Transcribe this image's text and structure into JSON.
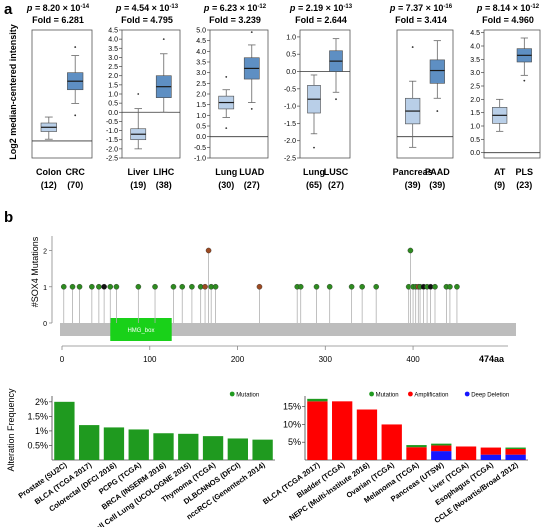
{
  "panel_a": {
    "label": "a",
    "ylabel": "Log2 median-centered intensity",
    "p_prefix": "p = ",
    "fold_prefix": "Fold = ",
    "colors": {
      "normal": "#b9cfe8",
      "tumor": "#5e8fc3",
      "stroke": "#4a4a4a",
      "whisker": "#666666"
    }
  },
  "panel_b": {
    "label": "b",
    "lollipop": {
      "ylabel": "#SOX4 Mutations",
      "domain_label": "HMG_box",
      "end_label": "474aa",
      "colors": {
        "missense": "#2e8b20",
        "truncating": "#111111",
        "other": "#9c4a22",
        "domain": "#19d119",
        "bar": "#bdbdbd"
      }
    },
    "colors": {
      "mutation": "#1f9a1f",
      "amplification": "#ff0000",
      "deep_deletion": "#1515ff"
    }
  },
  "chart_data": [
    {
      "type": "box",
      "id": "colon",
      "p": "8.20 × 10",
      "p_exp": "-14",
      "fold": "6.281",
      "yticks": [],
      "ylim": [
        -1.0,
        6.5
      ],
      "categories": [
        {
          "name": "Colon",
          "n": "(12)",
          "group": "normal",
          "min": 0.1,
          "q1": 0.55,
          "median": 0.8,
          "q3": 1.05,
          "max": 1.4,
          "outliers": []
        },
        {
          "name": "CRC",
          "n": "(70)",
          "group": "tumor",
          "min": 2.2,
          "q1": 3.0,
          "median": 3.5,
          "q3": 4.0,
          "max": 5.0,
          "outliers": [
            1.5,
            5.5
          ]
        }
      ]
    },
    {
      "type": "box",
      "id": "liver",
      "p": "4.54 × 10",
      "p_exp": "-13",
      "fold": "4.795",
      "yticks": [
        "-2.5",
        "-2.0",
        "-1.5",
        "-1.0",
        "-0.5",
        "0.0",
        "0.5",
        "1.0",
        "1.5",
        "2.0",
        "2.5",
        "3.0",
        "3.5",
        "4.0",
        "4.5"
      ],
      "ylim": [
        -2.5,
        4.5
      ],
      "categories": [
        {
          "name": "Liver",
          "n": "(19)",
          "group": "normal",
          "min": -2.0,
          "q1": -1.5,
          "median": -1.2,
          "q3": -0.9,
          "max": 0.2,
          "outliers": [
            1.0
          ]
        },
        {
          "name": "LIHC",
          "n": "(38)",
          "group": "tumor",
          "min": 0.0,
          "q1": 0.8,
          "median": 1.4,
          "q3": 2.0,
          "max": 3.2,
          "outliers": [
            4.0
          ]
        }
      ]
    },
    {
      "type": "box",
      "id": "lung-luad",
      "p": "6.23 × 10",
      "p_exp": "-12",
      "fold": "3.239",
      "yticks": [
        "-1.0",
        "-0.5",
        "0.0",
        "0.5",
        "1.0",
        "1.5",
        "2.0",
        "2.5",
        "3.0",
        "3.5",
        "4.0",
        "4.5",
        "5.0"
      ],
      "ylim": [
        -1.0,
        5.0
      ],
      "categories": [
        {
          "name": "Lung",
          "n": "(30)",
          "group": "normal",
          "min": 0.9,
          "q1": 1.3,
          "median": 1.6,
          "q3": 1.9,
          "max": 2.2,
          "outliers": [
            0.4,
            2.8
          ]
        },
        {
          "name": "LUAD",
          "n": "(27)",
          "group": "tumor",
          "min": 1.6,
          "q1": 2.7,
          "median": 3.2,
          "q3": 3.7,
          "max": 4.3,
          "outliers": [
            1.3,
            4.9
          ]
        }
      ]
    },
    {
      "type": "box",
      "id": "lung-lusc",
      "p": "2.19 × 10",
      "p_exp": "-13",
      "fold": "2.644",
      "yticks": [
        "-2.5",
        "-2.0",
        "-1.5",
        "-1.0",
        "-0.5",
        "0.0",
        "0.5",
        "1.0"
      ],
      "ylim": [
        -2.5,
        1.2
      ],
      "categories": [
        {
          "name": "Lung",
          "n": "(65)",
          "group": "normal",
          "min": -1.8,
          "q1": -1.2,
          "median": -0.8,
          "q3": -0.4,
          "max": -0.1,
          "outliers": [
            -2.2
          ]
        },
        {
          "name": "LUSC",
          "n": "(27)",
          "group": "tumor",
          "min": -0.6,
          "q1": 0.0,
          "median": 0.3,
          "q3": 0.6,
          "max": 0.95,
          "outliers": [
            -0.8
          ]
        }
      ]
    },
    {
      "type": "box",
      "id": "pancreas",
      "p": "7.37 × 10",
      "p_exp": "-16",
      "fold": "3.414",
      "yticks": [],
      "ylim": [
        -1.0,
        5.0
      ],
      "categories": [
        {
          "name": "Pancreas",
          "n": "(39)",
          "group": "normal",
          "min": -0.5,
          "q1": 0.6,
          "median": 1.2,
          "q3": 1.8,
          "max": 2.6,
          "outliers": [
            4.2
          ]
        },
        {
          "name": "PAAD",
          "n": "(39)",
          "group": "tumor",
          "min": 1.8,
          "q1": 2.5,
          "median": 3.1,
          "q3": 3.6,
          "max": 4.5,
          "outliers": [
            1.2
          ]
        }
      ]
    },
    {
      "type": "box",
      "id": "at-pls",
      "p": "8.14 × 10",
      "p_exp": "-12",
      "fold": "4.960",
      "yticks": [
        "0.0",
        "0.5",
        "1.0",
        "1.5",
        "2.0",
        "2.5",
        "3.0",
        "3.5",
        "4.0",
        "4.5"
      ],
      "ylim": [
        -0.2,
        4.6
      ],
      "categories": [
        {
          "name": "AT",
          "n": "(9)",
          "group": "normal",
          "min": 0.8,
          "q1": 1.1,
          "median": 1.4,
          "q3": 1.7,
          "max": 2.0,
          "outliers": []
        },
        {
          "name": "PLS",
          "n": "(23)",
          "group": "tumor",
          "min": 2.9,
          "q1": 3.4,
          "median": 3.65,
          "q3": 3.9,
          "max": 4.3,
          "outliers": [
            2.7
          ]
        }
      ]
    },
    {
      "type": "lollipop",
      "id": "sox4-mutations",
      "protein_length": 474,
      "xticks": [
        "0",
        "100",
        "200",
        "300",
        "400"
      ],
      "yticks": [
        "0",
        "1",
        "2"
      ],
      "ylim": [
        0,
        2.4
      ],
      "domain": {
        "start": 55,
        "end": 125
      },
      "mutations": [
        {
          "pos": 2,
          "count": 1,
          "type": "missense"
        },
        {
          "pos": 12,
          "count": 1,
          "type": "missense"
        },
        {
          "pos": 20,
          "count": 1,
          "type": "missense"
        },
        {
          "pos": 34,
          "count": 1,
          "type": "missense"
        },
        {
          "pos": 42,
          "count": 1,
          "type": "missense"
        },
        {
          "pos": 48,
          "count": 1,
          "type": "truncating"
        },
        {
          "pos": 55,
          "count": 1,
          "type": "missense"
        },
        {
          "pos": 62,
          "count": 1,
          "type": "missense"
        },
        {
          "pos": 87,
          "count": 1,
          "type": "missense"
        },
        {
          "pos": 106,
          "count": 1,
          "type": "missense"
        },
        {
          "pos": 127,
          "count": 1,
          "type": "missense"
        },
        {
          "pos": 137,
          "count": 1,
          "type": "missense"
        },
        {
          "pos": 148,
          "count": 1,
          "type": "missense"
        },
        {
          "pos": 158,
          "count": 1,
          "type": "missense"
        },
        {
          "pos": 163,
          "count": 1,
          "type": "other"
        },
        {
          "pos": 167,
          "count": 2,
          "type": "other"
        },
        {
          "pos": 170,
          "count": 1,
          "type": "missense"
        },
        {
          "pos": 175,
          "count": 1,
          "type": "missense"
        },
        {
          "pos": 225,
          "count": 1,
          "type": "other"
        },
        {
          "pos": 268,
          "count": 1,
          "type": "missense"
        },
        {
          "pos": 272,
          "count": 1,
          "type": "missense"
        },
        {
          "pos": 290,
          "count": 1,
          "type": "missense"
        },
        {
          "pos": 305,
          "count": 1,
          "type": "missense"
        },
        {
          "pos": 330,
          "count": 1,
          "type": "missense"
        },
        {
          "pos": 342,
          "count": 1,
          "type": "missense"
        },
        {
          "pos": 358,
          "count": 1,
          "type": "missense"
        },
        {
          "pos": 395,
          "count": 1,
          "type": "missense"
        },
        {
          "pos": 397,
          "count": 2,
          "type": "missense"
        },
        {
          "pos": 400,
          "count": 1,
          "type": "missense"
        },
        {
          "pos": 403,
          "count": 1,
          "type": "missense"
        },
        {
          "pos": 406,
          "count": 1,
          "type": "other"
        },
        {
          "pos": 408,
          "count": 1,
          "type": "missense"
        },
        {
          "pos": 412,
          "count": 1,
          "type": "truncating"
        },
        {
          "pos": 416,
          "count": 1,
          "type": "missense"
        },
        {
          "pos": 420,
          "count": 1,
          "type": "truncating"
        },
        {
          "pos": 425,
          "count": 1,
          "type": "missense"
        },
        {
          "pos": 438,
          "count": 1,
          "type": "missense"
        },
        {
          "pos": 442,
          "count": 1,
          "type": "missense"
        },
        {
          "pos": 450,
          "count": 1,
          "type": "missense"
        }
      ]
    },
    {
      "type": "bar",
      "id": "alteration-frequency-mutation",
      "ylabel": "Alteration Frequency",
      "yticks": [
        "0.5%",
        "1%",
        "1.5%",
        "2%"
      ],
      "ylim": [
        0,
        2.2
      ],
      "legend": [
        "Mutation"
      ],
      "legend_position": "top-right",
      "categories": [
        "Prostate (SU2C)",
        "BLCA (TCGA 2017)",
        "Colorectal (DFCI 2016)",
        "PCPG (TCGA)",
        "BRCA (INSERM 2016)",
        "Small Cell Lung (UCOLOGNE 2015)",
        "Thymoma (TCGA)",
        "DLBCNNOS (DFCI)",
        "nccRCC (Genentech 2014)"
      ],
      "values": [
        2.0,
        1.2,
        1.12,
        1.05,
        0.92,
        0.9,
        0.82,
        0.74,
        0.7
      ]
    },
    {
      "type": "bar",
      "id": "alteration-frequency-stacked",
      "yticks": [
        "5%",
        "10%",
        "15%"
      ],
      "ylim": [
        0,
        18
      ],
      "legend": [
        "Mutation",
        "Amplification",
        "Deep Deletion"
      ],
      "legend_position": "top-right",
      "stacked": true,
      "categories": [
        "BLCA (TCGA 2017)",
        "Bladder (TCGA)",
        "NEPC (Multi-Institute 2016)",
        "Ovarian (TCGA)",
        "Melanoma (TCGA)",
        "Pancreas (UTSW)",
        "Liver (TCGA)",
        "Esophagus (TCGA)",
        "CCLE (Novartis/Broad 2012)"
      ],
      "series": [
        {
          "name": "Deep Deletion",
          "values": [
            0,
            0,
            0,
            0,
            0,
            2.5,
            0,
            1.5,
            1.5
          ]
        },
        {
          "name": "Amplification",
          "values": [
            16.5,
            16.5,
            14.2,
            10.0,
            3.6,
            1.6,
            3.8,
            2.0,
            1.6
          ]
        },
        {
          "name": "Mutation",
          "values": [
            0.7,
            0,
            0,
            0,
            0.6,
            0.5,
            0,
            0,
            0.4
          ]
        }
      ]
    }
  ]
}
